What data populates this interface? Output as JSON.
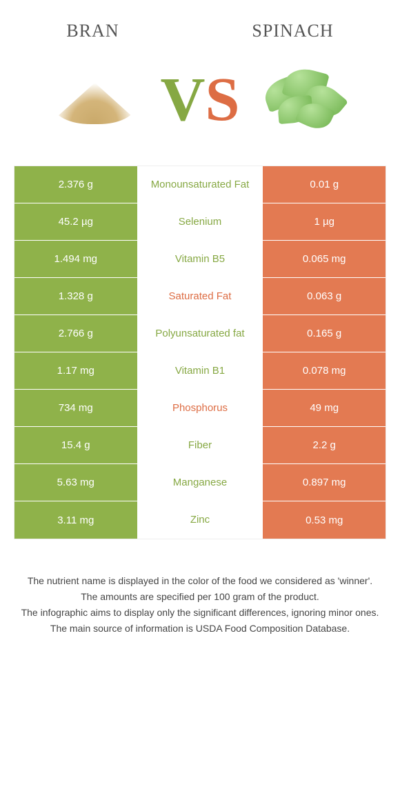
{
  "colors": {
    "left": "#8fb24a",
    "right": "#e37a52",
    "left_text": "#86a843",
    "right_text": "#dd6d44"
  },
  "header": {
    "left_title": "Bran",
    "right_title": "Spinach",
    "vs_v": "V",
    "vs_s": "S"
  },
  "rows": [
    {
      "left": "2.376 g",
      "label": "Monounsaturated Fat",
      "right": "0.01 g",
      "winner": "left"
    },
    {
      "left": "45.2 µg",
      "label": "Selenium",
      "right": "1 µg",
      "winner": "left"
    },
    {
      "left": "1.494 mg",
      "label": "Vitamin B5",
      "right": "0.065 mg",
      "winner": "left"
    },
    {
      "left": "1.328 g",
      "label": "Saturated Fat",
      "right": "0.063 g",
      "winner": "right"
    },
    {
      "left": "2.766 g",
      "label": "Polyunsaturated fat",
      "right": "0.165 g",
      "winner": "left"
    },
    {
      "left": "1.17 mg",
      "label": "Vitamin B1",
      "right": "0.078 mg",
      "winner": "left"
    },
    {
      "left": "734 mg",
      "label": "Phosphorus",
      "right": "49 mg",
      "winner": "right"
    },
    {
      "left": "15.4 g",
      "label": "Fiber",
      "right": "2.2 g",
      "winner": "left"
    },
    {
      "left": "5.63 mg",
      "label": "Manganese",
      "right": "0.897 mg",
      "winner": "left"
    },
    {
      "left": "3.11 mg",
      "label": "Zinc",
      "right": "0.53 mg",
      "winner": "left"
    }
  ],
  "footer": {
    "line1": "The nutrient name is displayed in the color of the food we considered as 'winner'.",
    "line2": "The amounts are specified per 100 gram of the product.",
    "line3": "The infographic aims to display only the significant differences, ignoring minor ones.",
    "line4": "The main source of information is USDA Food Composition Database."
  }
}
